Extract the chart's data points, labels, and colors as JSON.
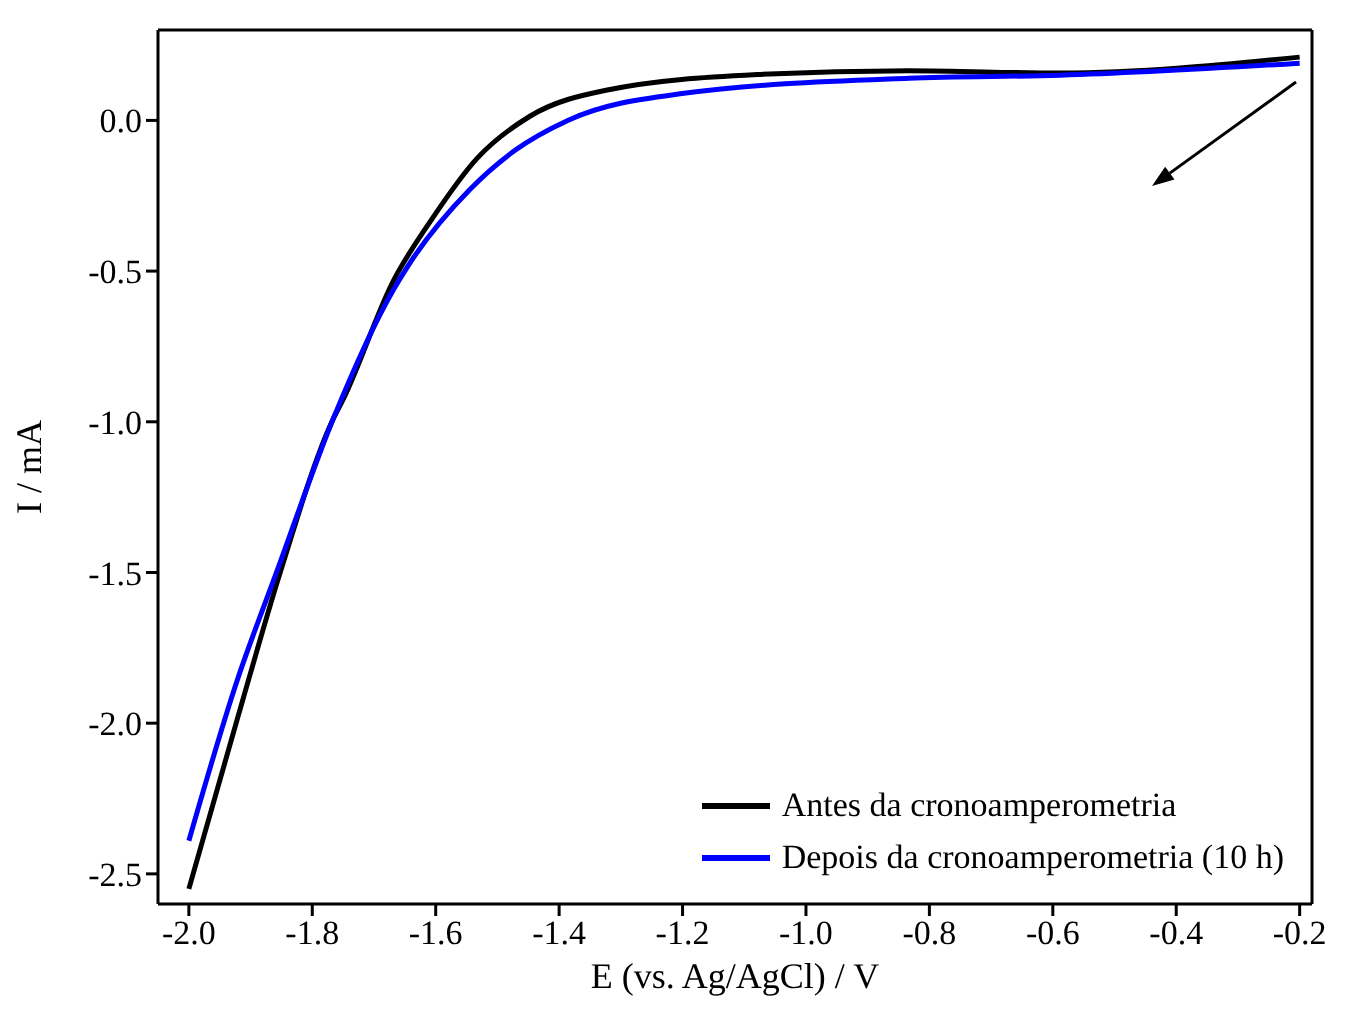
{
  "chart_data": {
    "type": "line",
    "xlabel": "E (vs. Ag/AgCl) / V",
    "ylabel": "I / mA",
    "xlim": [
      -2.05,
      -0.18
    ],
    "xticks": [
      {
        "value": -2.0,
        "label": "-2.0"
      },
      -1.8,
      -1.6,
      -1.4,
      -1.2,
      {
        "value": -1.0,
        "label": "-1.0"
      },
      -0.8,
      -0.6,
      -0.4,
      -0.2
    ],
    "ylim": [
      -2.6,
      0.3
    ],
    "yticks": [
      {
        "value": 0,
        "label": "0.0"
      },
      -0.5,
      {
        "value": -1,
        "label": "-1.0"
      },
      -1.5,
      {
        "value": -2,
        "label": "-2.0"
      },
      -2.5
    ],
    "legend": "bottom right",
    "grid": false,
    "marker": "none",
    "line_style": "solid",
    "series": [
      {
        "name": "Antes da cronoamperometria",
        "color": "#000000",
        "x": [
          -2.0,
          -1.922,
          -1.852,
          -1.766,
          -1.751,
          -1.668,
          -1.607,
          -1.533,
          -1.448,
          -1.324,
          -1.079,
          -0.833,
          -0.588,
          -0.2
        ],
        "values": [
          -2.55,
          -1.99,
          -1.5,
          -0.99,
          -0.93,
          -0.53,
          -0.33,
          -0.126,
          0.013,
          0.1,
          0.152,
          0.165,
          0.157,
          0.21
        ]
      },
      {
        "name": "Depois da cronoamperometria (10 h)",
        "color": "#0000ff",
        "x": [
          -2.0,
          -1.922,
          -1.858,
          -1.766,
          -1.668,
          -1.644,
          -1.545,
          -1.472,
          -1.386,
          -1.201,
          -0.833,
          -0.588,
          -0.2
        ],
        "values": [
          -2.39,
          -1.86,
          -1.5,
          -0.99,
          -0.56,
          -0.48,
          -0.23,
          -0.1,
          0.0,
          0.089,
          0.14,
          0.15,
          0.19
        ]
      }
    ]
  }
}
